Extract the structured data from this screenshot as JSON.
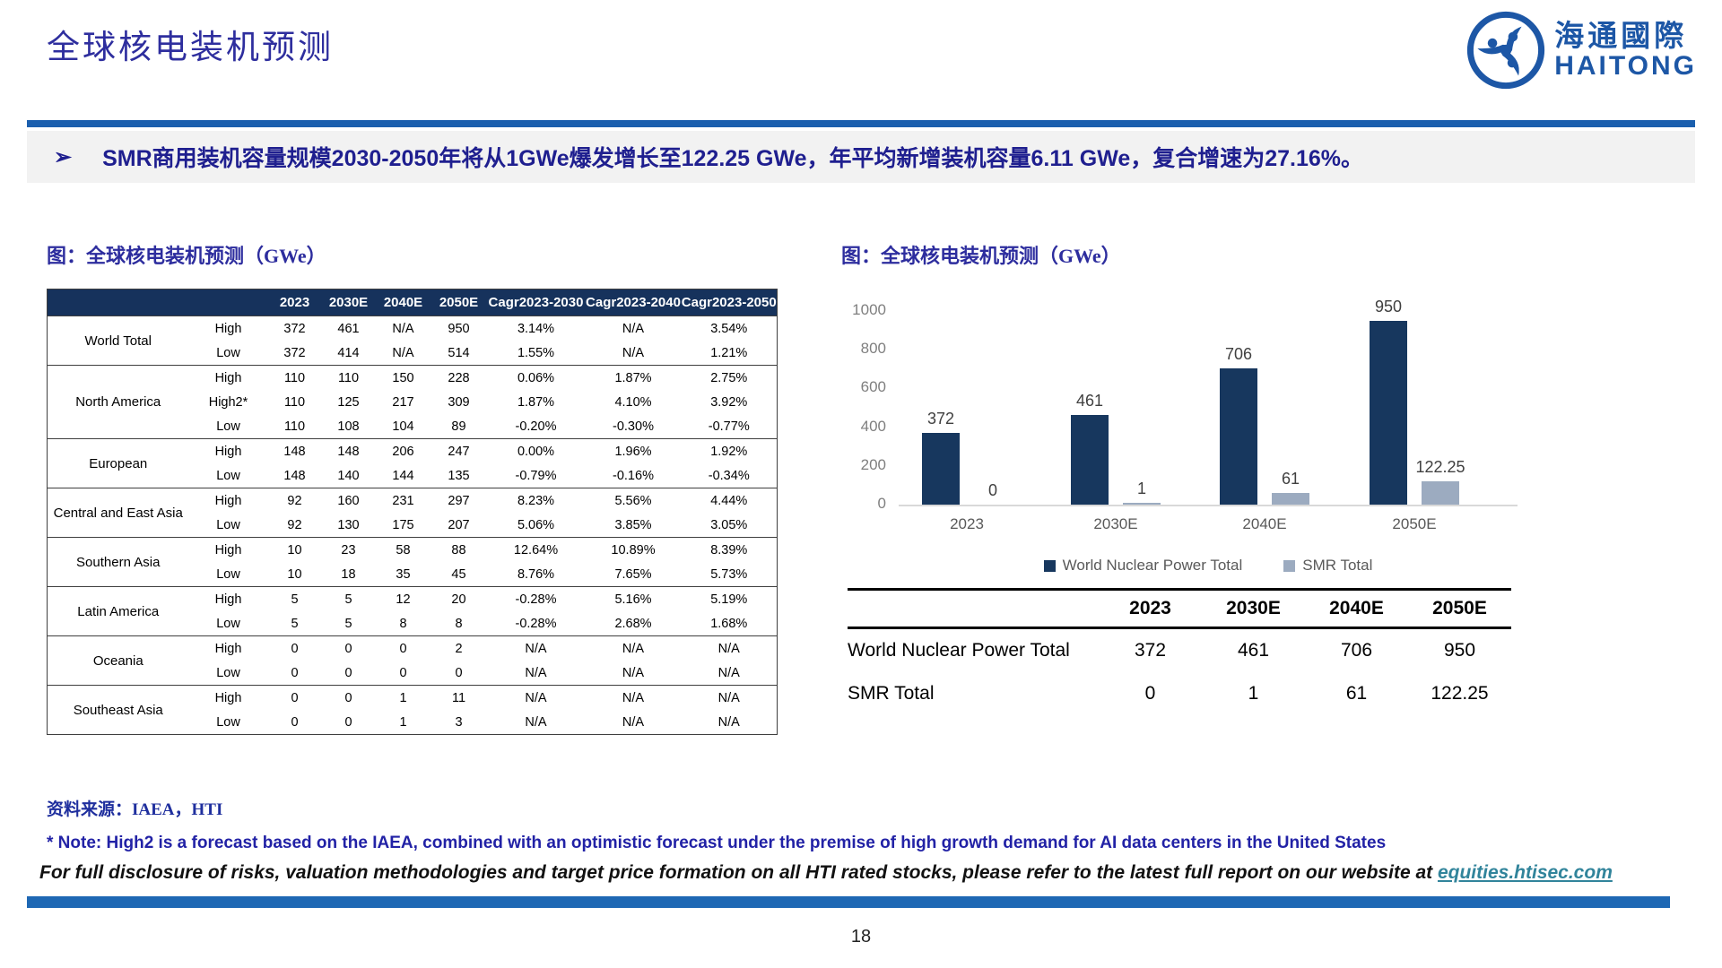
{
  "page": {
    "title": "全球核电装机预测",
    "page_number": "18"
  },
  "logo": {
    "cn": "海通國際",
    "en": "HAITONG",
    "color": "#1d57a6"
  },
  "highlight": {
    "bullet_glyph": "➢",
    "text": "SMR商用装机容量规模2030-2050年将从1GWe爆发增长至122.25 GWe，年平均新增装机容量6.11 GWe，复合增速为27.16%。"
  },
  "left_panel": {
    "caption": "图：全球核电装机预测（GWe）",
    "table": {
      "headers": [
        "",
        "",
        "2023",
        "2030E",
        "2040E",
        "2050E",
        "Cagr2023-2030",
        "Cagr2023-2040",
        "Cagr2023-2050"
      ],
      "groups": [
        {
          "region": "World Total",
          "rows": [
            {
              "scenario": "High",
              "values": [
                "372",
                "461",
                "N/A",
                "950",
                "3.14%",
                "N/A",
                "3.54%"
              ]
            },
            {
              "scenario": "Low",
              "values": [
                "372",
                "414",
                "N/A",
                "514",
                "1.55%",
                "N/A",
                "1.21%"
              ]
            }
          ]
        },
        {
          "region": "North America",
          "rows": [
            {
              "scenario": "High",
              "values": [
                "110",
                "110",
                "150",
                "228",
                "0.06%",
                "1.87%",
                "2.75%"
              ]
            },
            {
              "scenario": "High2*",
              "values": [
                "110",
                "125",
                "217",
                "309",
                "1.87%",
                "4.10%",
                "3.92%"
              ]
            },
            {
              "scenario": "Low",
              "values": [
                "110",
                "108",
                "104",
                "89",
                "-0.20%",
                "-0.30%",
                "-0.77%"
              ]
            }
          ]
        },
        {
          "region": "European",
          "rows": [
            {
              "scenario": "High",
              "values": [
                "148",
                "148",
                "206",
                "247",
                "0.00%",
                "1.96%",
                "1.92%"
              ]
            },
            {
              "scenario": "Low",
              "values": [
                "148",
                "140",
                "144",
                "135",
                "-0.79%",
                "-0.16%",
                "-0.34%"
              ]
            }
          ]
        },
        {
          "region": "Central and East Asia",
          "rows": [
            {
              "scenario": "High",
              "values": [
                "92",
                "160",
                "231",
                "297",
                "8.23%",
                "5.56%",
                "4.44%"
              ]
            },
            {
              "scenario": "Low",
              "values": [
                "92",
                "130",
                "175",
                "207",
                "5.06%",
                "3.85%",
                "3.05%"
              ]
            }
          ]
        },
        {
          "region": "Southern Asia",
          "rows": [
            {
              "scenario": "High",
              "values": [
                "10",
                "23",
                "58",
                "88",
                "12.64%",
                "10.89%",
                "8.39%"
              ]
            },
            {
              "scenario": "Low",
              "values": [
                "10",
                "18",
                "35",
                "45",
                "8.76%",
                "7.65%",
                "5.73%"
              ]
            }
          ]
        },
        {
          "region": "Latin America",
          "rows": [
            {
              "scenario": "High",
              "values": [
                "5",
                "5",
                "12",
                "20",
                "-0.28%",
                "5.16%",
                "5.19%"
              ]
            },
            {
              "scenario": "Low",
              "values": [
                "5",
                "5",
                "8",
                "8",
                "-0.28%",
                "2.68%",
                "1.68%"
              ]
            }
          ]
        },
        {
          "region": "Oceania",
          "rows": [
            {
              "scenario": "High",
              "values": [
                "0",
                "0",
                "0",
                "2",
                "N/A",
                "N/A",
                "N/A"
              ]
            },
            {
              "scenario": "Low",
              "values": [
                "0",
                "0",
                "0",
                "0",
                "N/A",
                "N/A",
                "N/A"
              ]
            }
          ]
        },
        {
          "region": "Southeast Asia",
          "rows": [
            {
              "scenario": "High",
              "values": [
                "0",
                "0",
                "1",
                "11",
                "N/A",
                "N/A",
                "N/A"
              ]
            },
            {
              "scenario": "Low",
              "values": [
                "0",
                "0",
                "1",
                "3",
                "N/A",
                "N/A",
                "N/A"
              ]
            }
          ]
        }
      ]
    }
  },
  "right_panel": {
    "caption": "图：全球核电装机预测（GWe）",
    "summary_table": {
      "headers": [
        "",
        "2023",
        "2030E",
        "2040E",
        "2050E"
      ],
      "rows": [
        {
          "label": "World Nuclear Power Total",
          "values": [
            "372",
            "461",
            "706",
            "950"
          ]
        },
        {
          "label": "SMR Total",
          "values": [
            "0",
            "1",
            "61",
            "122.25"
          ]
        }
      ]
    }
  },
  "chart_data": {
    "type": "bar",
    "title": "图：全球核电装机预测（GWe）",
    "categories": [
      "2023",
      "2030E",
      "2040E",
      "2050E"
    ],
    "series": [
      {
        "name": "World Nuclear Power Total",
        "color": "#17375e",
        "values": [
          372,
          461,
          706,
          950
        ]
      },
      {
        "name": "SMR Total",
        "color": "#9cabc0",
        "values": [
          0,
          1,
          61,
          122.25
        ]
      }
    ],
    "y_ticks": [
      0,
      200,
      400,
      600,
      800,
      1000
    ],
    "ylim": [
      0,
      1000
    ],
    "grid": false,
    "legend_position": "bottom",
    "data_labels": true
  },
  "footer": {
    "source": "资料来源：IAEA，HTI",
    "note": "* Note: High2 is a forecast based on the IAEA, combined with an optimistic forecast under the premise of high growth demand for AI data centers in the United States",
    "disclosure_prefix": "For full disclosure of risks, valuation methodologies and target price formation on all HTI rated stocks, please refer to the latest full report on our website at ",
    "disclosure_link": "equities.htisec.com"
  },
  "colors": {
    "accent_blue": "#1b5fae",
    "table_header_navy": "#16325c",
    "bar_navy": "#17375e",
    "bar_gray": "#9cabc0",
    "highlight_text_blue": "#1f1f8f",
    "link_teal": "#31849b"
  }
}
